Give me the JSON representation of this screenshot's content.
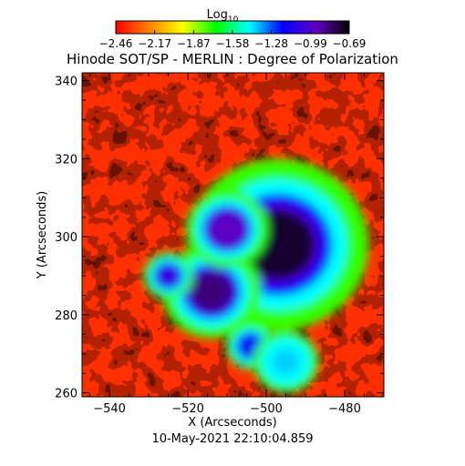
{
  "chart_data": {
    "type": "heatmap",
    "title": "Hinode SOT/SP - MERLIN : Degree of Polarization",
    "xlabel": "X (Arcseconds)",
    "ylabel": "Y (Arcseconds)",
    "timestamp": "10-May-2021 22:10:04.859",
    "xlim": [
      -547,
      -470
    ],
    "ylim": [
      259,
      342
    ],
    "xticks": [
      -540,
      -520,
      -500,
      -480
    ],
    "yticks": [
      260,
      280,
      300,
      320,
      340
    ],
    "colorbar": {
      "label": "Log10",
      "label_base": "Log",
      "label_sub": "10",
      "range": [
        -2.46,
        -0.69
      ],
      "ticks": [
        "-2.46",
        "-2.17",
        "-1.87",
        "-1.58",
        "-1.28",
        "-0.99",
        "-0.69"
      ],
      "colormap": [
        "#ff0000",
        "#ff8000",
        "#ffff00",
        "#00ff00",
        "#00ffff",
        "#0000ff",
        "#6000c0",
        "#000000"
      ]
    },
    "features": [
      {
        "x": -497,
        "y": 298,
        "radius": 11,
        "value": -0.75
      },
      {
        "x": -514,
        "y": 286,
        "radius": 6,
        "value": -0.85
      },
      {
        "x": -510,
        "y": 302,
        "radius": 5,
        "value": -0.95
      },
      {
        "x": -525,
        "y": 290,
        "radius": 3,
        "value": -1.05
      },
      {
        "x": -504,
        "y": 272,
        "radius": 3,
        "value": -1.15
      },
      {
        "x": -495,
        "y": 268,
        "radius": 4,
        "value": -1.4
      }
    ]
  }
}
